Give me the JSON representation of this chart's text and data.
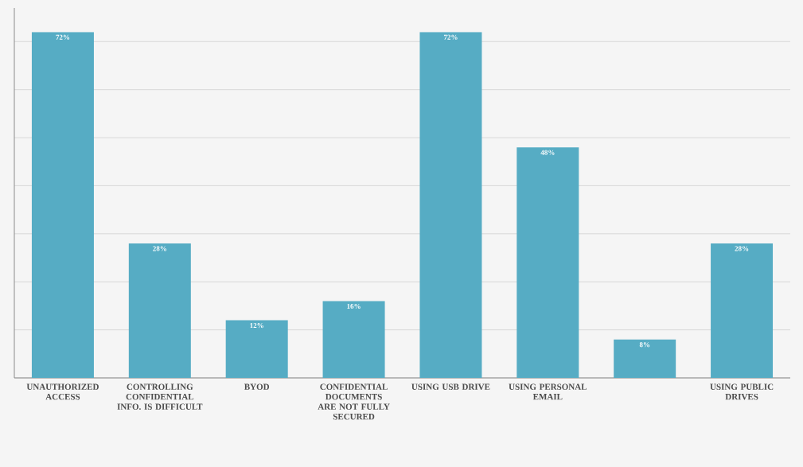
{
  "chart_data": {
    "type": "bar",
    "categories": [
      "UNAUTHORIZED ACCESS",
      "CONTROLLING CONFIDENTIAL INFO. IS DIFFICULT",
      "BYOD",
      "CONFIDENTIAL DOCUMENTS ARE NOT FULLY SECURED",
      "USING USB DRIVE",
      "USING PERSONAL EMAIL",
      null,
      "USING PUBLIC DRIVES"
    ],
    "values": [
      72,
      28,
      12,
      16,
      72,
      48,
      8,
      28
    ],
    "value_labels": [
      "72%",
      "28%",
      "12%",
      "16%",
      "72%",
      "48%",
      "8%",
      "28%"
    ],
    "color": "#56acc4",
    "ylim": [
      0,
      77
    ],
    "yticks": [
      {
        "value": 0,
        "label": null
      },
      {
        "value": 10,
        "label": null
      },
      {
        "value": 20,
        "label": null
      },
      {
        "value": 30,
        "label": null
      },
      {
        "value": 40,
        "label": null
      },
      {
        "value": 50,
        "label": null
      },
      {
        "value": 60,
        "label": null
      },
      {
        "value": 70,
        "label": null
      }
    ],
    "tick_labels": "x",
    "grid": "y"
  }
}
